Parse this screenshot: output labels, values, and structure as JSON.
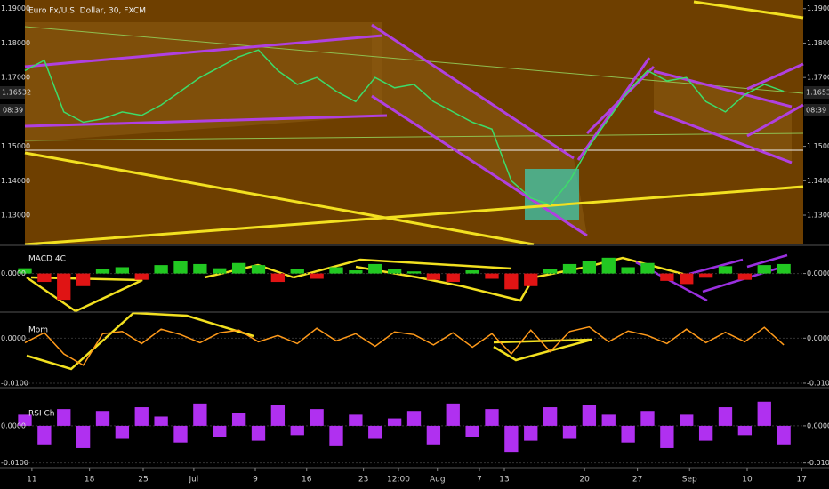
{
  "chart_data": [
    {
      "type": "line",
      "title": "Euro Fx/U.S. Dollar, 30, FXCM",
      "x": [
        0,
        2.5,
        5,
        7.5,
        10,
        12.5,
        15,
        17.5,
        20,
        22.5,
        25,
        27.5,
        30,
        32.5,
        35,
        37.5,
        40,
        42.5,
        45,
        47.5,
        50,
        52.5,
        55,
        57.5,
        60,
        62.5,
        65,
        67.5,
        70,
        72.5,
        75,
        77.5,
        80,
        82.5,
        85,
        87.5,
        90,
        92.5,
        95,
        97.5
      ],
      "series": [
        {
          "name": "EURUSD",
          "color": "#3ddc6a",
          "values": [
            1.172,
            1.175,
            1.16,
            1.157,
            1.158,
            1.16,
            1.159,
            1.162,
            1.166,
            1.17,
            1.173,
            1.176,
            1.178,
            1.172,
            1.168,
            1.17,
            1.166,
            1.163,
            1.17,
            1.167,
            1.168,
            1.163,
            1.16,
            1.157,
            1.155,
            1.14,
            1.135,
            1.133,
            1.14,
            1.15,
            1.158,
            1.166,
            1.172,
            1.169,
            1.17,
            1.163,
            1.16,
            1.165,
            1.168,
            1.166
          ]
        }
      ],
      "ylim": [
        1.122,
        1.192
      ],
      "yticks": [
        {
          "value": 1.19,
          "label": "1.19000"
        },
        {
          "value": 1.18,
          "label": "1.18000"
        },
        {
          "value": 1.17,
          "label": "1.17000"
        },
        {
          "value": 1.15,
          "label": "1.15000"
        },
        {
          "value": 1.14,
          "label": "1.14000"
        },
        {
          "value": 1.13,
          "label": "1.13000"
        }
      ],
      "last_price": 1.16532,
      "countdown": "08:39"
    },
    {
      "type": "histogram",
      "title": "MACD 4C",
      "x": [
        0,
        2.5,
        5,
        7.5,
        10,
        12.5,
        15,
        17.5,
        20,
        22.5,
        25,
        27.5,
        30,
        32.5,
        35,
        37.5,
        40,
        42.5,
        45,
        47.5,
        50,
        52.5,
        55,
        57.5,
        60,
        62.5,
        65,
        67.5,
        70,
        72.5,
        75,
        77.5,
        80,
        82.5,
        85,
        87.5,
        90,
        92.5,
        95,
        97.5
      ],
      "values": [
        0.0005,
        -0.0008,
        -0.0025,
        -0.0012,
        0.0004,
        0.0006,
        -0.0006,
        0.0008,
        0.0012,
        0.0009,
        0.0005,
        0.001,
        0.0008,
        -0.0008,
        0.0004,
        -0.0005,
        0.0006,
        0.0003,
        0.0009,
        0.0004,
        0.0002,
        -0.0006,
        -0.0008,
        0.0003,
        -0.0005,
        -0.0015,
        -0.0012,
        0.0004,
        0.0009,
        0.0012,
        0.0015,
        0.0006,
        0.001,
        -0.0007,
        -0.001,
        -0.0004,
        0.0007,
        -0.0006,
        0.0008,
        0.0009
      ],
      "positive_color": "#22c822",
      "negative_color": "#e01414",
      "ylim": [
        -0.0035,
        0.0025
      ],
      "yticks": [
        {
          "value": 0,
          "label": "0.0000"
        }
      ]
    },
    {
      "type": "line",
      "title": "Mom",
      "x": [
        0,
        2.5,
        5,
        7.5,
        10,
        12.5,
        15,
        17.5,
        20,
        22.5,
        25,
        27.5,
        30,
        32.5,
        35,
        37.5,
        40,
        42.5,
        45,
        47.5,
        50,
        52.5,
        55,
        57.5,
        60,
        62.5,
        65,
        67.5,
        70,
        72.5,
        75,
        77.5,
        80,
        82.5,
        85,
        87.5,
        90,
        92.5,
        95,
        97.5
      ],
      "series": [
        {
          "name": "Mom",
          "color": "#ff9a1a",
          "values": [
            -0.001,
            0.0012,
            -0.0035,
            -0.006,
            0.001,
            0.0015,
            -0.0012,
            0.002,
            0.0008,
            -0.001,
            0.0012,
            0.0018,
            -0.0008,
            0.0006,
            -0.0012,
            0.0022,
            -0.0006,
            0.001,
            -0.0018,
            0.0014,
            0.0008,
            -0.0015,
            0.0012,
            -0.002,
            0.001,
            -0.0035,
            0.0018,
            -0.003,
            0.0015,
            0.0025,
            -0.0008,
            0.0016,
            0.0006,
            -0.0012,
            0.002,
            -0.001,
            0.0013,
            -0.0008,
            0.0024,
            -0.0015
          ]
        }
      ],
      "ylim": [
        -0.0106,
        0.0054
      ],
      "yticks": [
        {
          "value": 0,
          "label": "0.0000"
        },
        {
          "value": -0.01,
          "label": "-0.0100"
        }
      ]
    },
    {
      "type": "histogram",
      "title": "RSI Ch",
      "x": [
        0,
        2.5,
        5,
        7.5,
        10,
        12.5,
        15,
        17.5,
        20,
        22.5,
        25,
        27.5,
        30,
        32.5,
        35,
        37.5,
        40,
        42.5,
        45,
        47.5,
        50,
        52.5,
        55,
        57.5,
        60,
        62.5,
        65,
        67.5,
        70,
        72.5,
        75,
        77.5,
        80,
        82.5,
        85,
        87.5,
        90,
        92.5,
        95,
        97.5
      ],
      "values": [
        0.003,
        -0.005,
        0.0045,
        -0.006,
        0.004,
        -0.0035,
        0.005,
        0.0025,
        -0.0045,
        0.006,
        -0.003,
        0.0035,
        -0.004,
        0.0055,
        -0.0025,
        0.0045,
        -0.0055,
        0.003,
        -0.0035,
        0.002,
        0.004,
        -0.005,
        0.006,
        -0.003,
        0.0045,
        -0.007,
        -0.004,
        0.005,
        -0.0035,
        0.0055,
        0.003,
        -0.0045,
        0.004,
        -0.006,
        0.003,
        -0.004,
        0.005,
        -0.0025,
        0.0065,
        -0.005
      ],
      "positive_color": "#b030f0",
      "negative_color": "#b030f0",
      "ylim": [
        -0.0108,
        0.0098
      ],
      "yticks": [
        {
          "value": 0,
          "label": "0.0000"
        },
        {
          "value": -0.01,
          "label": "-0.0100"
        }
      ],
      "xlim": [
        0,
        100
      ],
      "xticks": [
        {
          "value": 0.9,
          "label": "11"
        },
        {
          "value": 8.3,
          "label": "18"
        },
        {
          "value": 15.2,
          "label": "25"
        },
        {
          "value": 21.7,
          "label": "Jul"
        },
        {
          "value": 29.6,
          "label": "9"
        },
        {
          "value": 36.2,
          "label": "16"
        },
        {
          "value": 43.5,
          "label": "23"
        },
        {
          "value": 48,
          "label": "12:00"
        },
        {
          "value": 53,
          "label": "Aug"
        },
        {
          "value": 58.4,
          "label": "7"
        },
        {
          "value": 61.6,
          "label": "13"
        },
        {
          "value": 71.9,
          "label": "20"
        },
        {
          "value": 78.7,
          "label": "27"
        },
        {
          "value": 85.4,
          "label": "Sep"
        },
        {
          "value": 92.8,
          "label": "10"
        },
        {
          "value": 99.8,
          "label": "17"
        }
      ]
    }
  ]
}
